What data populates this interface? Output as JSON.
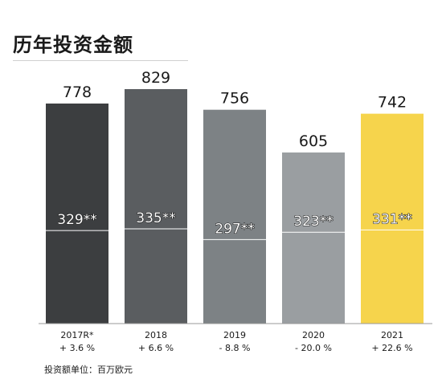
{
  "title": "历年投资金额",
  "unit_note": "投资额单位：百万欧元",
  "chart_data": {
    "type": "bar",
    "categories": [
      "2017R*",
      "2018",
      "2019",
      "2020",
      "2021"
    ],
    "values": [
      778,
      829,
      756,
      605,
      742
    ],
    "value_labels": [
      "778",
      "829",
      "756",
      "605",
      "742"
    ],
    "inner_values": [
      329,
      335,
      297,
      323,
      331
    ],
    "inner_labels": [
      "329**",
      "335**",
      "297**",
      "323**",
      "331**"
    ],
    "growth_labels": [
      "+ 3.6 %",
      "+ 6.6 %",
      "- 8.8 %",
      "- 20.0 %",
      "+ 22.6 %"
    ],
    "colors": [
      "#3c3e40",
      "#5a5d60",
      "#7d8285",
      "#9a9ea1",
      "#f6d44c"
    ],
    "ylim": [
      0,
      880
    ],
    "grid": false,
    "legend": "none"
  }
}
